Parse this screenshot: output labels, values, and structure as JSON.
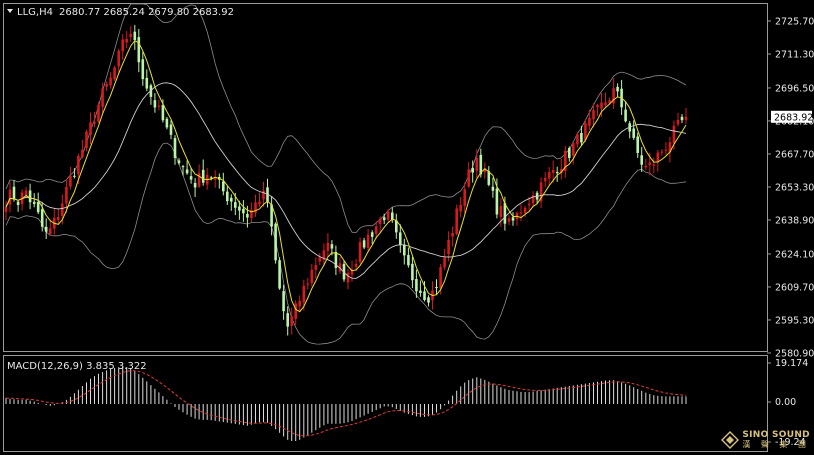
{
  "header": {
    "symbol_timeframe": "LLG,H4",
    "ohlc": "2680.77 2685.24 2679.80 2683.92"
  },
  "price_axis": {
    "labels": [
      "2725.70",
      "2711.30",
      "2696.50",
      "2682.10",
      "2667.70",
      "2653.30",
      "2638.90",
      "2624.10",
      "2609.70",
      "2595.30",
      "2580.90"
    ],
    "current_price": "2683.92"
  },
  "macd": {
    "label": "MACD(12,26,9) 3.835 3.322",
    "axis_labels": [
      "19.174",
      "0.00",
      "-19.24"
    ]
  },
  "logo": {
    "line1": "SINO SOUND",
    "line2": "漢 聲 集 團"
  },
  "colors": {
    "background": "#000000",
    "bull_candle": "#d71920",
    "bear_candle": "#b9f5a8",
    "bollinger": "#8c8c8c",
    "ma_fast": "#e6e22a",
    "macd_histogram": "#dcdcdc",
    "macd_signal": "#e23a3a",
    "price_tag_bg": "#ffffff"
  },
  "chart_data": {
    "type": "candlestick",
    "symbol": "LLG",
    "timeframe": "H4",
    "ylim": [
      2580.9,
      2730
    ],
    "close_path": [
      2648,
      2650,
      2647,
      2652,
      2646,
      2640,
      2632,
      2635,
      2642,
      2650,
      2658,
      2665,
      2672,
      2680,
      2688,
      2695,
      2700,
      2708,
      2716,
      2722,
      2712,
      2702,
      2694,
      2688,
      2682,
      2675,
      2668,
      2662,
      2658,
      2655,
      2658,
      2660,
      2656,
      2652,
      2649,
      2646,
      2643,
      2641,
      2645,
      2650,
      2647,
      2625,
      2605,
      2592,
      2597,
      2605,
      2612,
      2618,
      2624,
      2628,
      2623,
      2618,
      2615,
      2620,
      2625,
      2630,
      2634,
      2638,
      2642,
      2637,
      2628,
      2620,
      2615,
      2610,
      2607,
      2606,
      2612,
      2622,
      2632,
      2642,
      2652,
      2660,
      2666,
      2660,
      2652,
      2645,
      2641,
      2636,
      2640,
      2645,
      2648,
      2650,
      2654,
      2658,
      2662,
      2664,
      2668,
      2672,
      2676,
      2680,
      2684,
      2688,
      2692,
      2695,
      2690,
      2682,
      2672,
      2665,
      2661,
      2664,
      2668,
      2672,
      2676,
      2680,
      2683.92
    ],
    "macd_values": [
      3,
      2.5,
      2,
      2.2,
      1.5,
      0.5,
      -0.5,
      -1,
      0,
      1.5,
      4,
      7,
      10,
      13,
      15,
      16.5,
      17.8,
      18.5,
      19,
      18.3,
      16,
      13,
      10,
      7,
      4,
      1,
      -2,
      -4,
      -6,
      -7.5,
      -8,
      -8,
      -8.5,
      -9,
      -9.5,
      -10,
      -10.5,
      -11,
      -10,
      -9,
      -9.5,
      -12,
      -15,
      -18,
      -19,
      -18,
      -16,
      -14,
      -12,
      -10,
      -10,
      -10,
      -9.5,
      -8.5,
      -7,
      -5.5,
      -4,
      -2.5,
      -1,
      -1.5,
      -3,
      -4.5,
      -5.5,
      -6.5,
      -6.5,
      -6,
      -4,
      -1,
      3,
      7,
      10.5,
      12.5,
      13.5,
      12.5,
      11,
      9.5,
      8,
      7,
      6.5,
      6,
      6,
      6.5,
      7,
      7.5,
      8,
      8.5,
      9,
      9.5,
      10,
      10.5,
      11,
      11.5,
      12,
      12,
      11,
      10,
      8.5,
      7,
      5.5,
      4.5,
      4,
      3.8,
      3.9,
      3.9,
      3.835
    ]
  }
}
